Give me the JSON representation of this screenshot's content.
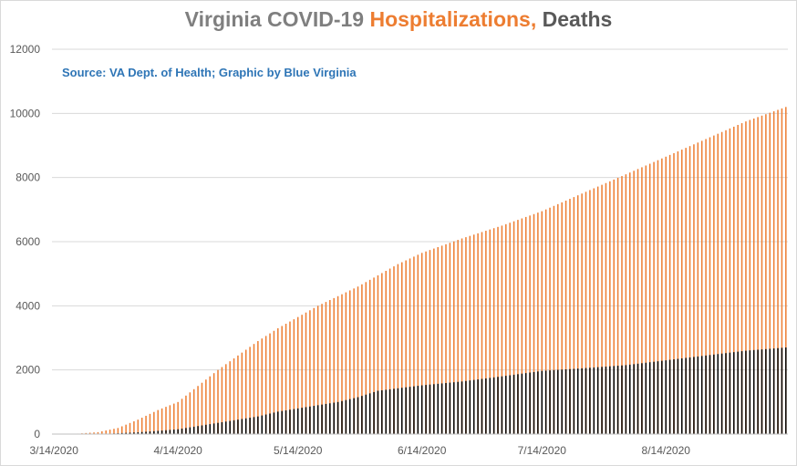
{
  "title": {
    "part1": "Virginia COVID-19 ",
    "part2": "Hospitalizations, ",
    "part3": "Deaths",
    "part1_color": "#7f7f7f",
    "part2_color": "#ed7d31",
    "part3_color": "#595959"
  },
  "source_note": "Source: VA Dept. of Health; Graphic by Blue Virginia",
  "source_note_color": "#2e75b6",
  "chart_data": {
    "type": "bar",
    "stacking": "overlapped",
    "x_start_date": "3/14/2020",
    "x_end_date": "9/13/2020",
    "x_tick_labels": [
      "3/14/2020",
      "4/14/2020",
      "5/14/2020",
      "6/14/2020",
      "7/14/2020",
      "8/14/2020"
    ],
    "ylim": [
      0,
      12000
    ],
    "y_tick_labels": [
      "0",
      "2000",
      "4000",
      "6000",
      "8000",
      "10000",
      "12000"
    ],
    "gridlines": true,
    "legend": "none",
    "series": [
      {
        "color": "#ed7d31",
        "points": [
          [
            "3/14/2020",
            0
          ],
          [
            "3/20/2020",
            15
          ],
          [
            "3/25/2020",
            60
          ],
          [
            "3/30/2020",
            190
          ],
          [
            "4/4/2020",
            450
          ],
          [
            "4/9/2020",
            750
          ],
          [
            "4/14/2020",
            1000
          ],
          [
            "4/19/2020",
            1500
          ],
          [
            "4/24/2020",
            2000
          ],
          [
            "4/29/2020",
            2450
          ],
          [
            "5/4/2020",
            2900
          ],
          [
            "5/9/2020",
            3300
          ],
          [
            "5/14/2020",
            3650
          ],
          [
            "5/19/2020",
            4000
          ],
          [
            "5/24/2020",
            4300
          ],
          [
            "5/29/2020",
            4600
          ],
          [
            "6/3/2020",
            4950
          ],
          [
            "6/8/2020",
            5300
          ],
          [
            "6/14/2020",
            5650
          ],
          [
            "6/24/2020",
            6100
          ],
          [
            "7/4/2020",
            6500
          ],
          [
            "7/14/2020",
            6950
          ],
          [
            "7/24/2020",
            7500
          ],
          [
            "8/4/2020",
            8100
          ],
          [
            "8/14/2020",
            8650
          ],
          [
            "8/24/2020",
            9200
          ],
          [
            "9/3/2020",
            9750
          ],
          [
            "9/13/2020",
            10200
          ]
        ]
      },
      {
        "color": "#000000",
        "points": [
          [
            "3/14/2020",
            0
          ],
          [
            "3/21/2020",
            3
          ],
          [
            "3/28/2020",
            14
          ],
          [
            "4/4/2020",
            55
          ],
          [
            "4/9/2020",
            100
          ],
          [
            "4/14/2020",
            150
          ],
          [
            "4/19/2020",
            250
          ],
          [
            "4/24/2020",
            350
          ],
          [
            "4/29/2020",
            450
          ],
          [
            "5/4/2020",
            550
          ],
          [
            "5/9/2020",
            700
          ],
          [
            "5/14/2020",
            800
          ],
          [
            "5/19/2020",
            900
          ],
          [
            "5/24/2020",
            1000
          ],
          [
            "5/29/2020",
            1150
          ],
          [
            "6/3/2020",
            1350
          ],
          [
            "6/14/2020",
            1520
          ],
          [
            "6/24/2020",
            1640
          ],
          [
            "7/4/2020",
            1800
          ],
          [
            "7/14/2020",
            1970
          ],
          [
            "7/24/2020",
            2050
          ],
          [
            "8/4/2020",
            2150
          ],
          [
            "8/14/2020",
            2300
          ],
          [
            "8/24/2020",
            2450
          ],
          [
            "9/3/2020",
            2600
          ],
          [
            "9/13/2020",
            2700
          ]
        ]
      }
    ]
  }
}
